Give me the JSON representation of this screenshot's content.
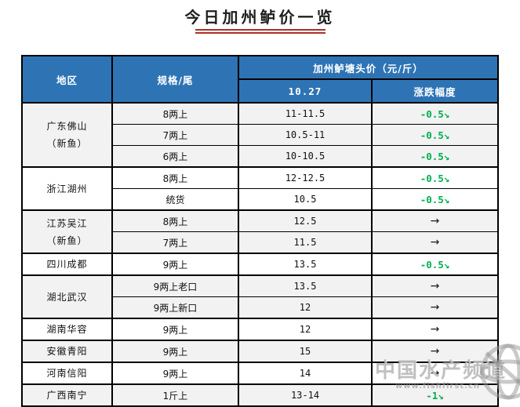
{
  "page": {
    "title": "今日加州鲈价一览"
  },
  "table": {
    "header": {
      "region": "地区",
      "spec": "规格/尾",
      "price_group": "加州鲈塘头价（元/斤）",
      "date": "10.27",
      "change": "涨跌幅度"
    },
    "groups": [
      {
        "region_lines": [
          "广东佛山",
          "（新鱼）"
        ],
        "stripe": true,
        "rows": [
          {
            "spec": "8两上",
            "price": "11-11.5",
            "change": "-0.5",
            "trend": "down"
          },
          {
            "spec": "7两上",
            "price": "10.5-11",
            "change": "-0.5",
            "trend": "down"
          },
          {
            "spec": "6两上",
            "price": "10-10.5",
            "change": "-0.5",
            "trend": "down"
          }
        ]
      },
      {
        "region_lines": [
          "浙江湖州"
        ],
        "stripe": false,
        "rows": [
          {
            "spec": "8两上",
            "price": "12-12.5",
            "change": "-0.5",
            "trend": "down"
          },
          {
            "spec": "统货",
            "price": "10.5",
            "change": "-0.5",
            "trend": "down"
          }
        ]
      },
      {
        "region_lines": [
          "江苏吴江",
          "（新鱼）"
        ],
        "stripe": true,
        "rows": [
          {
            "spec": "8两上",
            "price": "12.5",
            "change": "",
            "trend": "flat"
          },
          {
            "spec": "7两上",
            "price": "11.5",
            "change": "",
            "trend": "flat"
          }
        ]
      },
      {
        "region_lines": [
          "四川成都"
        ],
        "stripe": false,
        "rows": [
          {
            "spec": "9两上",
            "price": "13.5",
            "change": "-0.5",
            "trend": "down"
          }
        ]
      },
      {
        "region_lines": [
          "湖北武汉"
        ],
        "stripe": true,
        "rows": [
          {
            "spec": "9两上老口",
            "price": "13.5",
            "change": "",
            "trend": "flat"
          },
          {
            "spec": "9两上新口",
            "price": "12",
            "change": "",
            "trend": "flat"
          }
        ]
      },
      {
        "region_lines": [
          "湖南华容"
        ],
        "stripe": false,
        "rows": [
          {
            "spec": "9两上",
            "price": "12",
            "change": "",
            "trend": "flat"
          }
        ]
      },
      {
        "region_lines": [
          "安徽青阳"
        ],
        "stripe": true,
        "rows": [
          {
            "spec": "9两上",
            "price": "15",
            "change": "",
            "trend": "flat"
          }
        ]
      },
      {
        "region_lines": [
          "河南信阳"
        ],
        "stripe": false,
        "rows": [
          {
            "spec": "9两上",
            "price": "14",
            "change": "",
            "trend": "flat"
          }
        ]
      },
      {
        "region_lines": [
          "广西南宁"
        ],
        "stripe": true,
        "rows": [
          {
            "spec": "1斤上",
            "price": "13-14",
            "change": "-1",
            "trend": "down"
          }
        ]
      }
    ]
  },
  "icons": {
    "down_arrow": "↘",
    "flat_arrow": "→",
    "globe": "globe-icon"
  },
  "watermark": {
    "name": "中国水产频道",
    "url": "www.fishfirst.cn"
  },
  "colors": {
    "header_bg": "#2E74B5",
    "stripe": "#F2F2F2",
    "down_green": "#00B050",
    "underline_red": "#A93226",
    "border": "#000000"
  }
}
